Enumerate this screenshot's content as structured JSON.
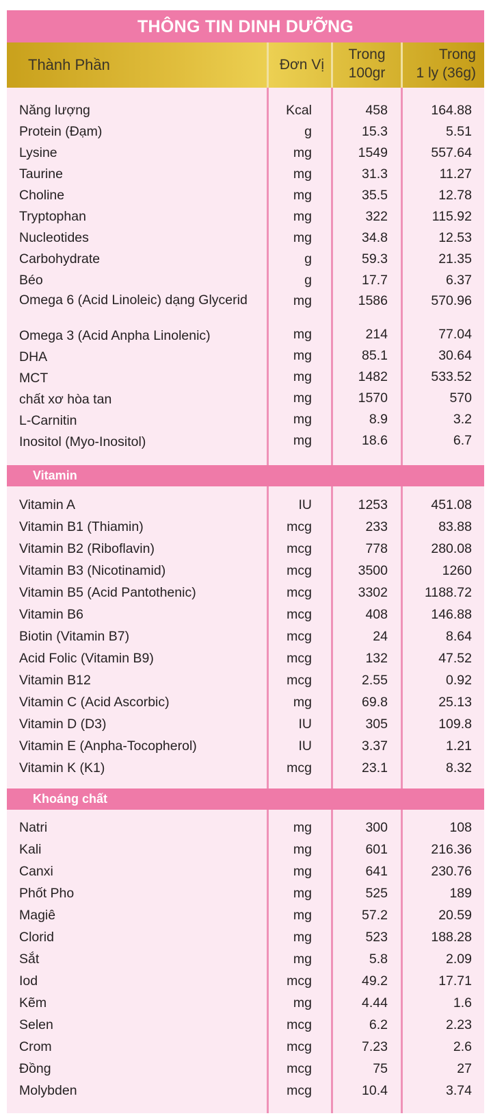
{
  "title": "THÔNG TIN DINH DƯỠNG",
  "header": {
    "name": "Thành Phần",
    "unit": "Đơn Vị",
    "per100_l1": "Trong",
    "per100_l2": "100gr",
    "percup_l1": "Trong",
    "percup_l2": "1 ly (36g)"
  },
  "sections": [
    {
      "label": "",
      "rows": [
        {
          "name": "Năng lượng",
          "unit": "Kcal",
          "per100": "458",
          "percup": "164.88"
        },
        {
          "name": "Protein (Đạm)",
          "unit": "g",
          "per100": "15.3",
          "percup": "5.51"
        },
        {
          "name": "Lysine",
          "unit": "mg",
          "per100": "1549",
          "percup": "557.64"
        },
        {
          "name": "Taurine",
          "unit": "mg",
          "per100": "31.3",
          "percup": "11.27"
        },
        {
          "name": "Choline",
          "unit": "mg",
          "per100": "35.5",
          "percup": "12.78"
        },
        {
          "name": "Tryptophan",
          "unit": "mg",
          "per100": "322",
          "percup": "115.92"
        },
        {
          "name": "Nucleotides",
          "unit": "mg",
          "per100": "34.8",
          "percup": "12.53"
        },
        {
          "name": "Carbohydrate",
          "unit": "g",
          "per100": "59.3",
          "percup": "21.35"
        },
        {
          "name": "Béo",
          "unit": "g",
          "per100": "17.7",
          "percup": "6.37"
        },
        {
          "name": "Omega 6 (Acid Linoleic) dạng Glycerid",
          "unit": "mg",
          "per100": "1586",
          "percup": "570.96"
        },
        {
          "name": "Omega 3 (Acid Anpha Linolenic)",
          "unit": "mg",
          "per100": "214",
          "percup": "77.04"
        },
        {
          "name": "DHA",
          "unit": "mg",
          "per100": "85.1",
          "percup": "30.64"
        },
        {
          "name": "MCT",
          "unit": "mg",
          "per100": "1482",
          "percup": "533.52"
        },
        {
          "name": "chất xơ hòa tan",
          "unit": "mg",
          "per100": "1570",
          "percup": "570"
        },
        {
          "name": "L-Carnitin",
          "unit": "mg",
          "per100": "8.9",
          "percup": "3.2"
        },
        {
          "name": "Inositol (Myo-Inositol)",
          "unit": "mg",
          "per100": "18.6",
          "percup": "6.7"
        }
      ]
    },
    {
      "label": "Vitamin",
      "rows": [
        {
          "name": "Vitamin A",
          "unit": "IU",
          "per100": "1253",
          "percup": "451.08"
        },
        {
          "name": "Vitamin B1 (Thiamin)",
          "unit": "mcg",
          "per100": "233",
          "percup": "83.88"
        },
        {
          "name": "Vitamin B2 (Riboflavin)",
          "unit": "mcg",
          "per100": "778",
          "percup": "280.08"
        },
        {
          "name": "Vitamin B3 (Nicotinamid)",
          "unit": "mcg",
          "per100": "3500",
          "percup": "1260"
        },
        {
          "name": "Vitamin B5 (Acid Pantothenic)",
          "unit": "mcg",
          "per100": "3302",
          "percup": "1188.72"
        },
        {
          "name": "Vitamin B6",
          "unit": "mcg",
          "per100": "408",
          "percup": "146.88"
        },
        {
          "name": "Biotin (Vitamin B7)",
          "unit": "mcg",
          "per100": "24",
          "percup": "8.64"
        },
        {
          "name": "Acid Folic (Vitamin B9)",
          "unit": "mcg",
          "per100": "132",
          "percup": "47.52"
        },
        {
          "name": "Vitamin B12",
          "unit": "mcg",
          "per100": "2.55",
          "percup": "0.92"
        },
        {
          "name": "Vitamin C (Acid Ascorbic)",
          "unit": "mg",
          "per100": "69.8",
          "percup": "25.13"
        },
        {
          "name": "Vitamin D (D3)",
          "unit": "IU",
          "per100": "305",
          "percup": "109.8"
        },
        {
          "name": "Vitamin E (Anpha-Tocopherol)",
          "unit": "IU",
          "per100": "3.37",
          "percup": "1.21"
        },
        {
          "name": "Vitamin K (K1)",
          "unit": "mcg",
          "per100": "23.1",
          "percup": "8.32"
        }
      ]
    },
    {
      "label": "Khoáng chất",
      "rows": [
        {
          "name": "Natri",
          "unit": "mg",
          "per100": "300",
          "percup": "108"
        },
        {
          "name": "Kali",
          "unit": "mg",
          "per100": "601",
          "percup": "216.36"
        },
        {
          "name": "Canxi",
          "unit": "mg",
          "per100": "641",
          "percup": "230.76"
        },
        {
          "name": "Phốt Pho",
          "unit": "mg",
          "per100": "525",
          "percup": "189"
        },
        {
          "name": "Magiê",
          "unit": "mg",
          "per100": "57.2",
          "percup": "20.59"
        },
        {
          "name": "Clorid",
          "unit": "mg",
          "per100": "523",
          "percup": "188.28"
        },
        {
          "name": "Sắt",
          "unit": "mg",
          "per100": "5.8",
          "percup": "2.09"
        },
        {
          "name": "Iod",
          "unit": "mcg",
          "per100": "49.2",
          "percup": "17.71"
        },
        {
          "name": "Kẽm",
          "unit": "mg",
          "per100": "4.44",
          "percup": "1.6"
        },
        {
          "name": "Selen",
          "unit": "mcg",
          "per100": "6.2",
          "percup": "2.23"
        },
        {
          "name": "Crom",
          "unit": "mcg",
          "per100": "7.23",
          "percup": "2.6"
        },
        {
          "name": "Đồng",
          "unit": "mcg",
          "per100": "75",
          "percup": "27"
        },
        {
          "name": "Molybden",
          "unit": "mcg",
          "per100": "10.4",
          "percup": "3.74"
        }
      ]
    }
  ],
  "colors": {
    "pink": "#ef7aa8",
    "body": "#fce9f2",
    "gold": "#e0bd3c",
    "divider": "#ef92b8"
  }
}
